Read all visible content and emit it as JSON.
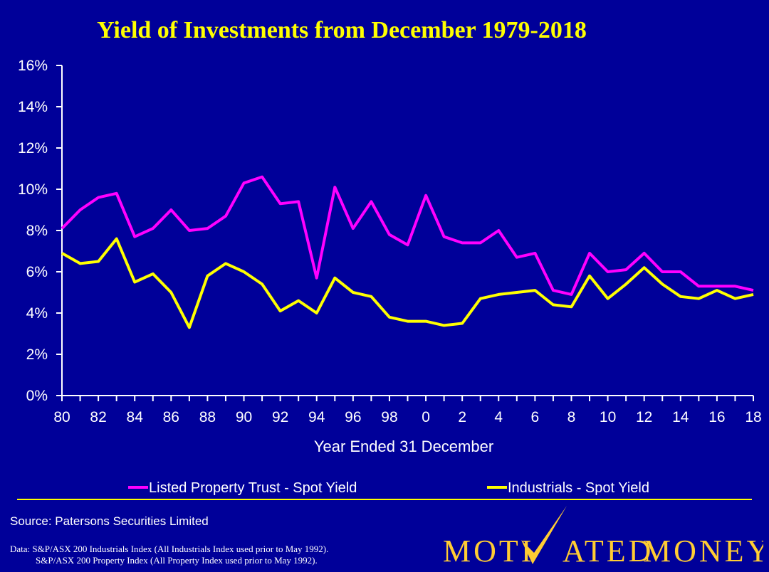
{
  "chart_data": {
    "type": "line",
    "title": "Yield of Investments from December 1979-2018",
    "xlabel": "Year Ended 31 December",
    "ylabel": "",
    "x": [
      1980,
      1981,
      1982,
      1983,
      1984,
      1985,
      1986,
      1987,
      1988,
      1989,
      1990,
      1991,
      1992,
      1993,
      1994,
      1995,
      1996,
      1997,
      1998,
      1999,
      2000,
      2001,
      2002,
      2003,
      2004,
      2005,
      2006,
      2007,
      2008,
      2009,
      2010,
      2011,
      2012,
      2013,
      2014,
      2015,
      2016,
      2017,
      2018
    ],
    "xtick_labels": [
      "80",
      "82",
      "84",
      "86",
      "88",
      "90",
      "92",
      "94",
      "96",
      "98",
      "0",
      "2",
      "4",
      "6",
      "8",
      "10",
      "12",
      "14",
      "16",
      "18"
    ],
    "ytick_labels": [
      "0%",
      "2%",
      "4%",
      "6%",
      "8%",
      "10%",
      "12%",
      "14%",
      "16%"
    ],
    "ylim": [
      0,
      16
    ],
    "xlim": [
      1980,
      2018
    ],
    "grid": false,
    "legend_position": "bottom",
    "series": [
      {
        "name": "Listed Property Trust - Spot Yield",
        "color": "#ff00ff",
        "values": [
          8.1,
          9.0,
          9.6,
          9.8,
          7.7,
          8.1,
          9.0,
          8.0,
          8.1,
          8.7,
          10.3,
          10.6,
          9.3,
          9.4,
          5.7,
          10.1,
          8.1,
          9.4,
          7.8,
          7.3,
          9.7,
          7.7,
          7.4,
          7.4,
          8.0,
          6.7,
          6.9,
          5.1,
          4.9,
          6.9,
          6.0,
          6.1,
          6.9,
          6.0,
          6.0,
          5.3,
          5.3,
          5.3,
          5.1
        ]
      },
      {
        "name": "Industrials - Spot Yield",
        "color": "#ffff00",
        "values": [
          6.9,
          6.4,
          6.5,
          7.6,
          5.5,
          5.9,
          5.0,
          3.3,
          5.8,
          6.4,
          6.0,
          5.4,
          4.1,
          4.6,
          4.0,
          5.7,
          5.0,
          4.8,
          3.8,
          3.6,
          3.6,
          3.4,
          3.5,
          4.7,
          4.9,
          5.0,
          5.1,
          4.4,
          4.3,
          5.8,
          4.7,
          5.4,
          6.2,
          5.4,
          4.8,
          4.7,
          5.1,
          4.7,
          4.9
        ]
      }
    ]
  },
  "footer": {
    "source": "Source: Patersons Securities Limited",
    "note_1": "Data: S&P/ASX 200 Industrials Index (All Industrials Index used prior to May 1992).",
    "note_2": "S&P/ASX 200 Property Index (All Property Index used prior to May 1992)."
  },
  "logo": {
    "text_left": "Moti",
    "text_right": "ated",
    "text_money": "Money",
    "color": "#ffcc33"
  },
  "colors": {
    "background": "#000099",
    "title": "#ffff00",
    "axis": "#ffffff",
    "divider": "#ffff00"
  }
}
